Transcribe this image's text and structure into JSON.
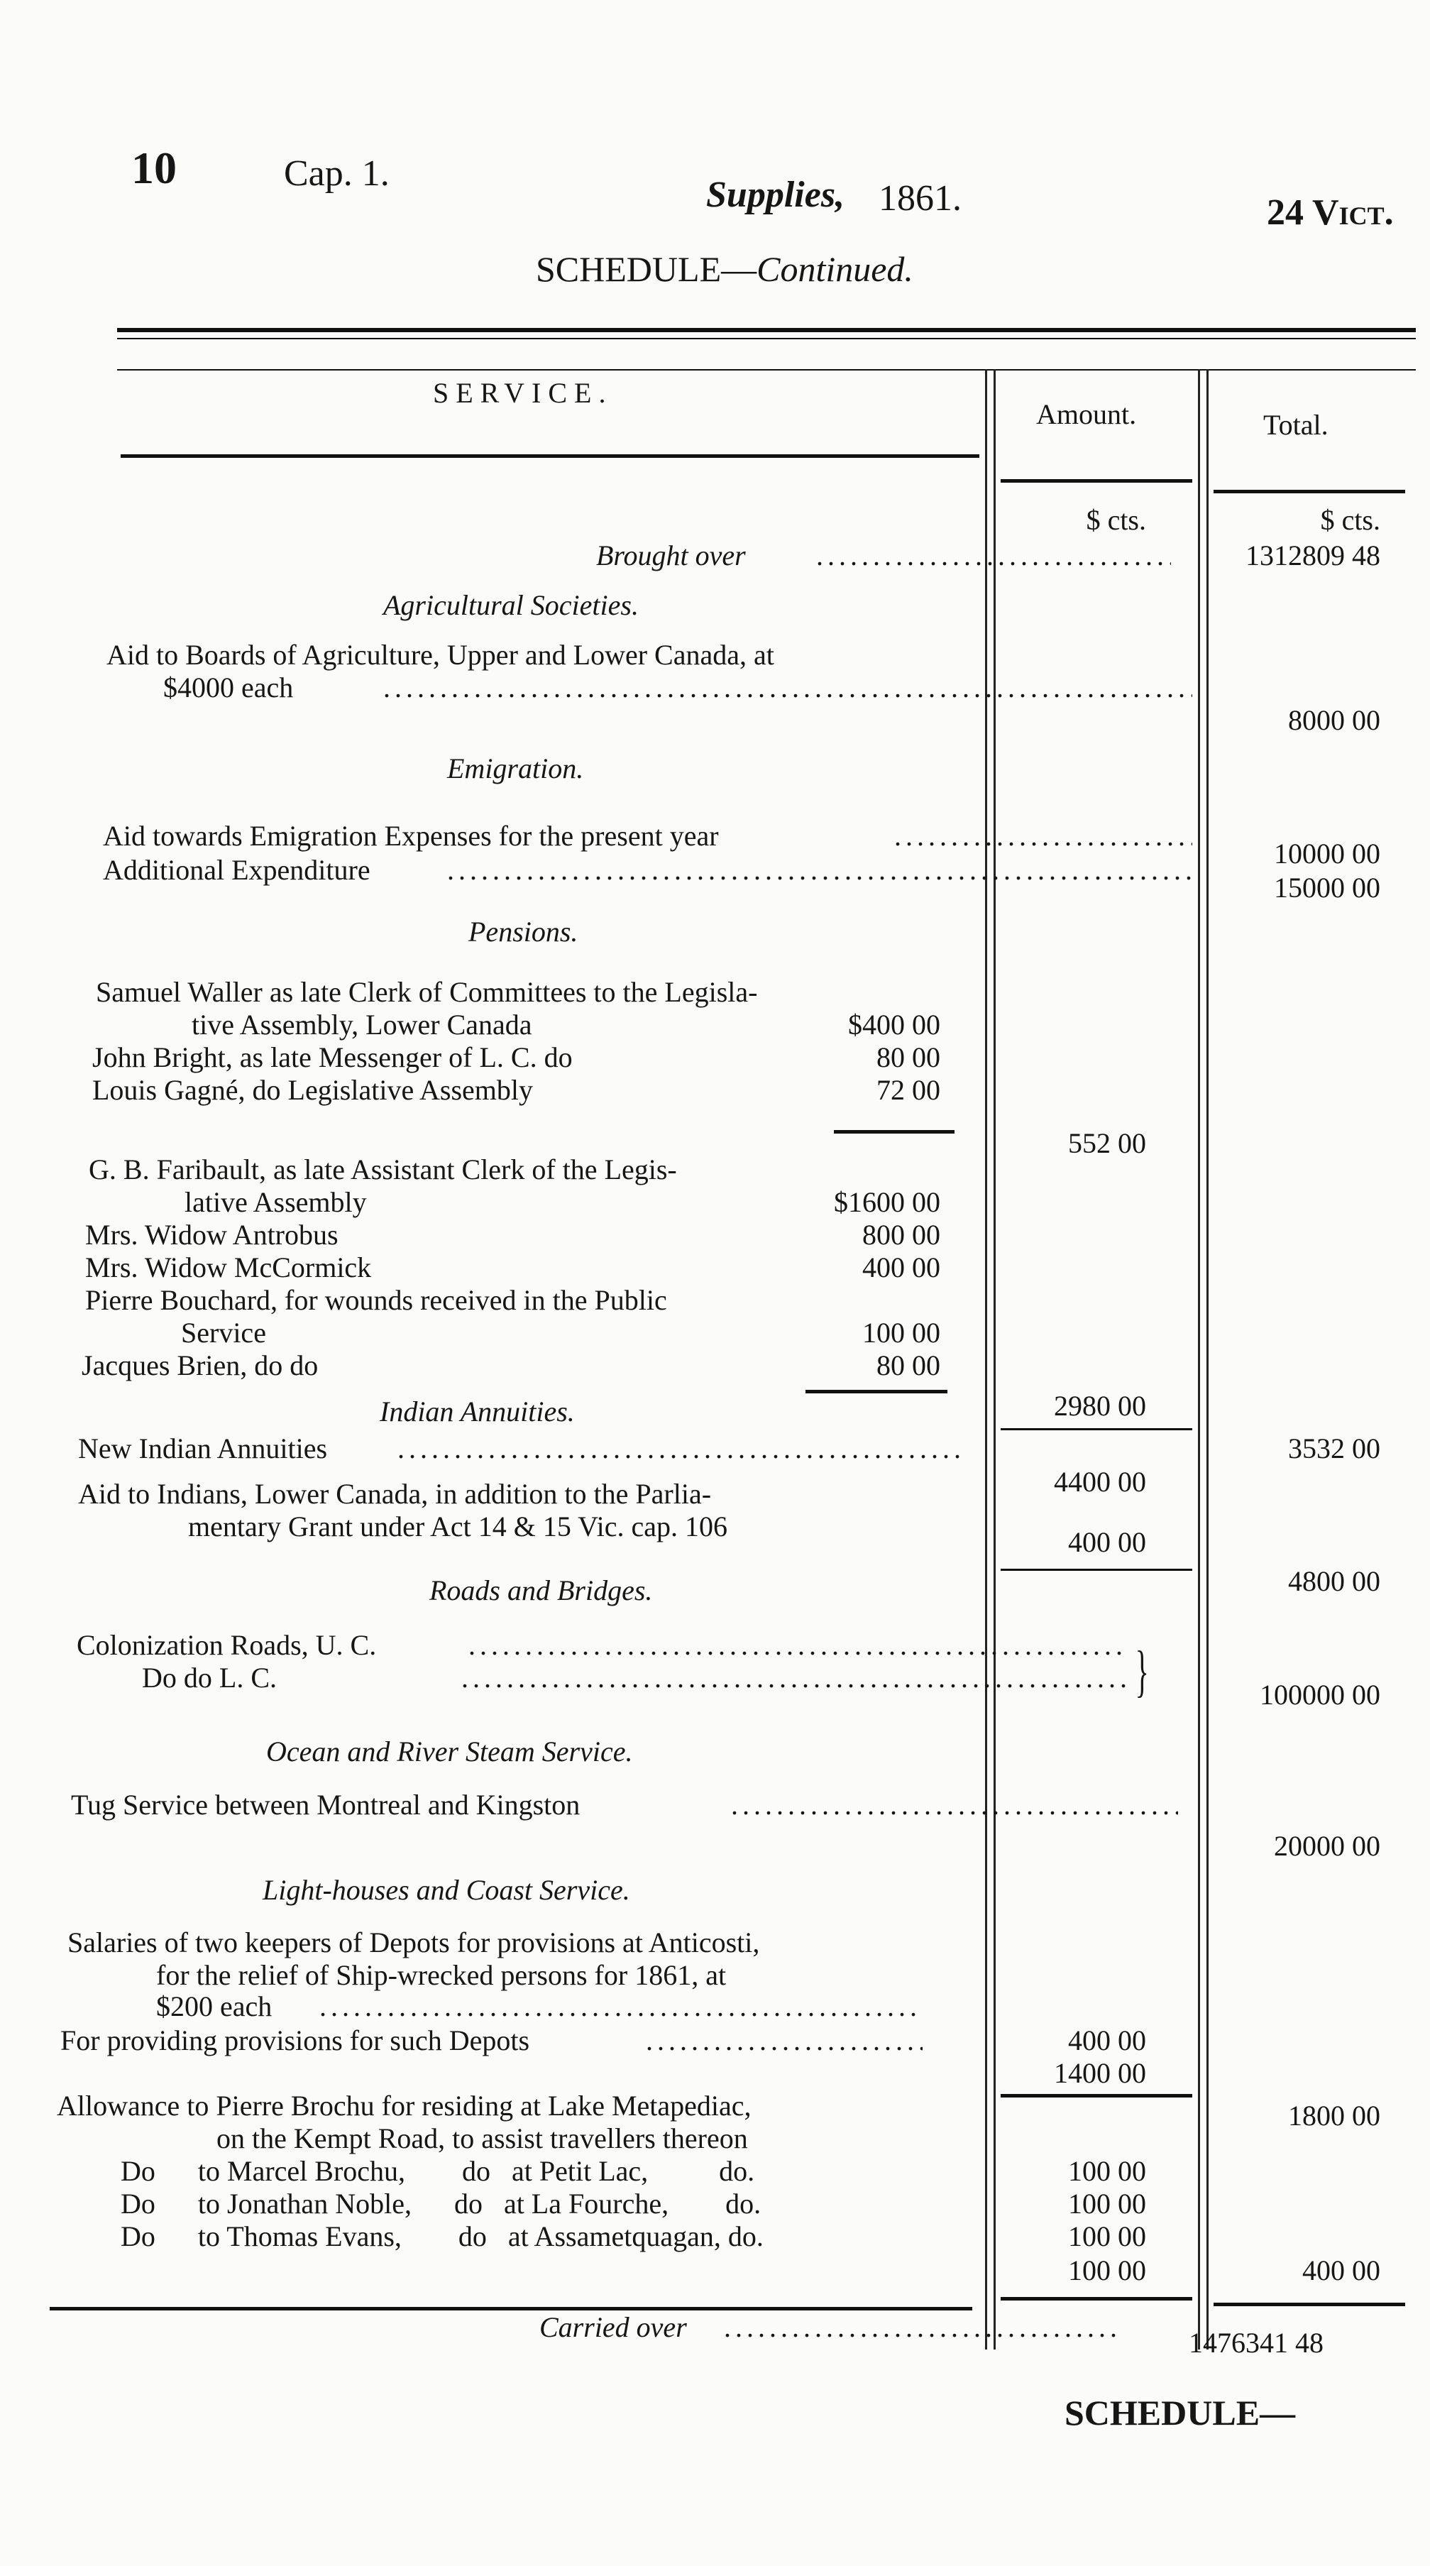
{
  "page_header": {
    "page_number": "10",
    "chapter": "Cap. 1.",
    "title_italic": "Supplies,",
    "year": "1861.",
    "act": "24 Vict."
  },
  "schedule_title": {
    "main": "SCHEDULE—",
    "suffix": "Continued."
  },
  "columns": {
    "service": "SERVICE.",
    "amount": "Amount.",
    "total": "Total."
  },
  "brought_over": {
    "label": "Brought over",
    "amount_units": "$    cts.",
    "total_units": "$    cts.",
    "total": "1312809 48"
  },
  "sections": [
    {
      "heading": "Agricultural Societies.",
      "lines": [
        "Aid to Boards of Agriculture, Upper and Lower Canada, at",
        "$4000 each"
      ],
      "total": "8000 00"
    },
    {
      "heading": "Emigration.",
      "lines": [
        "Aid towards Emigration Expenses for the present year",
        "Additional Expenditure"
      ],
      "totals": [
        "10000 00",
        "15000 00"
      ]
    },
    {
      "heading": "Pensions.",
      "lines": [
        "Samuel Waller as late Clerk of Committees to the Legisla-",
        "tive Assembly, Lower Canada",
        "John Bright, as late Messenger of L. C. do",
        "Louis Gagné,      do      Legislative Assembly",
        "G. B. Faribault, as late Assistant Clerk of the Legis-",
        "lative Assembly",
        "Mrs. Widow Antrobus",
        "Mrs. Widow McCormick",
        "Pierre Bouchard, for wounds received in the Public",
        "Service",
        "Jacques Brien,        do                  do"
      ],
      "sub": [
        "$400 00",
        "80 00",
        "72 00",
        "$1600 00",
        "800 00",
        "400 00",
        "100 00",
        "80 00"
      ],
      "amounts": [
        "552 00",
        "2980 00"
      ],
      "total": "3532 00"
    },
    {
      "heading": "Indian Annuities.",
      "lines": [
        "New Indian Annuities",
        "Aid to Indians, Lower Canada, in addition to the Parlia-",
        "mentary Grant under Act 14 & 15 Vic. cap. 106"
      ],
      "amounts": [
        "4400 00",
        "400 00"
      ],
      "total": "4800 00"
    },
    {
      "heading": "Roads and Bridges.",
      "lines": [
        "Colonization Roads, U. C.",
        "Do          do      L. C."
      ],
      "total": "100000 00"
    },
    {
      "heading": "Ocean and River Steam Service.",
      "lines": [
        "Tug Service between Montreal and Kingston"
      ],
      "total": "20000 00"
    },
    {
      "heading": "Light-houses and Coast Service.",
      "lines": [
        "Salaries of two keepers of Depots for provisions at Anticosti,",
        "for the relief of Ship-wrecked persons for 1861, at",
        "$200 each",
        "For providing provisions for such Depots",
        "Allowance to Pierre Brochu for residing at Lake Metapediac,",
        "on the Kempt Road, to assist travellers thereon",
        "Do      to Marcel Brochu,        do   at Petit Lac,          do.",
        "Do      to Jonathan Noble,      do   at La Fourche,        do.",
        "Do      to Thomas Evans,        do   at Assametquagan, do."
      ],
      "amounts": [
        "400 00",
        "1400 00",
        "100 00",
        "100 00",
        "100 00",
        "100 00"
      ],
      "totals": [
        "1800 00",
        "400 00"
      ]
    }
  ],
  "carried_over": {
    "label": "Carried over",
    "total": "1476341 48"
  },
  "catchword": "SCHEDULE—"
}
